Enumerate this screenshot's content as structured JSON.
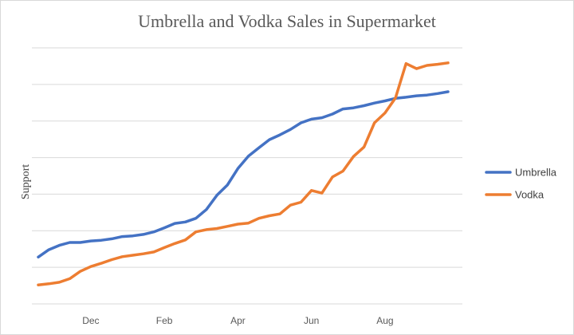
{
  "chart_data": {
    "type": "line",
    "title": "Umbrella and Vodka Sales in Supermarket",
    "xlabel": "",
    "ylabel": "Support",
    "ylim": [
      0,
      7
    ],
    "grid": true,
    "legend_position": "right",
    "x": [
      1,
      2,
      3,
      4,
      5,
      6,
      7,
      8,
      9,
      10,
      11,
      12,
      13,
      14,
      15,
      16,
      17,
      18,
      19,
      20,
      21,
      22,
      23,
      24,
      25,
      26,
      27,
      28,
      29,
      30,
      31,
      32,
      33,
      34,
      35,
      36,
      37,
      38,
      39,
      40
    ],
    "x_ticks": [
      {
        "x": 6.0,
        "label": "Dec"
      },
      {
        "x": 13.0,
        "label": "Feb"
      },
      {
        "x": 20.0,
        "label": "Apr"
      },
      {
        "x": 27.0,
        "label": "Jun"
      },
      {
        "x": 34.0,
        "label": "Aug"
      }
    ],
    "series": [
      {
        "name": "Umbrella",
        "color": "#4472C4",
        "values": [
          1.28,
          1.48,
          1.6,
          1.68,
          1.68,
          1.72,
          1.74,
          1.78,
          1.84,
          1.86,
          1.9,
          1.97,
          2.08,
          2.2,
          2.24,
          2.34,
          2.58,
          2.97,
          3.25,
          3.7,
          4.04,
          4.27,
          4.49,
          4.62,
          4.77,
          4.95,
          5.05,
          5.09,
          5.19,
          5.33,
          5.36,
          5.42,
          5.49,
          5.55,
          5.62,
          5.65,
          5.69,
          5.71,
          5.75,
          5.8
        ]
      },
      {
        "name": "Vodka",
        "color": "#ED7D31",
        "values": [
          0.52,
          0.55,
          0.59,
          0.69,
          0.89,
          1.02,
          1.11,
          1.21,
          1.29,
          1.33,
          1.37,
          1.42,
          1.54,
          1.65,
          1.75,
          1.97,
          2.03,
          2.06,
          2.12,
          2.18,
          2.21,
          2.34,
          2.41,
          2.46,
          2.7,
          2.78,
          3.1,
          3.03,
          3.47,
          3.63,
          4.03,
          4.29,
          4.95,
          5.22,
          5.63,
          6.57,
          6.43,
          6.52,
          6.55,
          6.59
        ]
      }
    ]
  },
  "colors": {
    "gridline": "#D9D9D9",
    "title": "#595959",
    "background": "#FFFFFF"
  }
}
